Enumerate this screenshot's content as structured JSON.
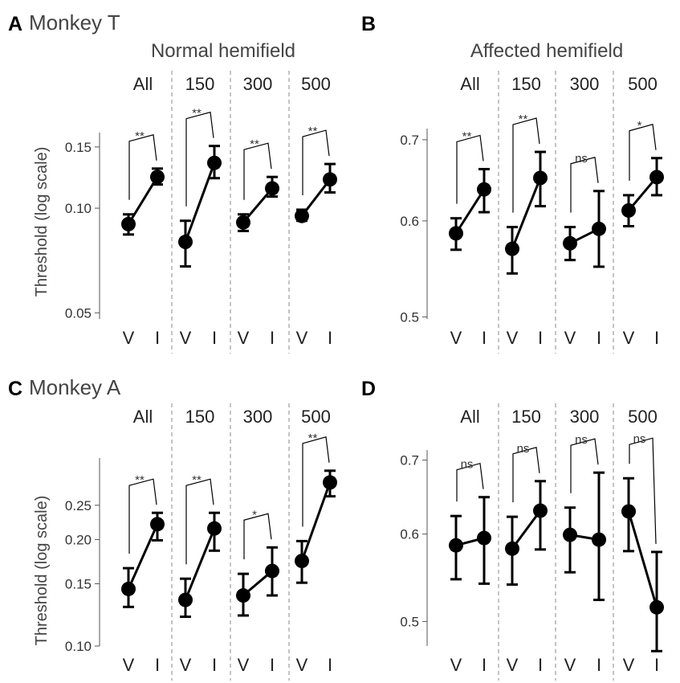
{
  "chart_data": [
    {
      "panel": "A",
      "title": "Monkey T",
      "subtitle": "Normal hemifield",
      "type": "line",
      "yscale": "log",
      "ylabel": "Threshold (log scale)",
      "ylim": [
        0.048,
        0.165
      ],
      "yticks": [
        0.05,
        0.1,
        0.15
      ],
      "ytick_labels": [
        "0.05",
        "0.10",
        "0.15"
      ],
      "conditions": [
        "V",
        "I"
      ],
      "groups": [
        {
          "label": "All",
          "V": {
            "value": 0.09,
            "lo": 0.084,
            "hi": 0.096
          },
          "I": {
            "value": 0.123,
            "lo": 0.117,
            "hi": 0.13
          },
          "sig": "**"
        },
        {
          "label": "150",
          "V": {
            "value": 0.08,
            "lo": 0.068,
            "hi": 0.092
          },
          "I": {
            "value": 0.135,
            "lo": 0.122,
            "hi": 0.151
          },
          "sig": "**"
        },
        {
          "label": "300",
          "V": {
            "value": 0.091,
            "lo": 0.086,
            "hi": 0.096
          },
          "I": {
            "value": 0.114,
            "lo": 0.108,
            "hi": 0.123
          },
          "sig": "**"
        },
        {
          "label": "500",
          "V": {
            "value": 0.095,
            "lo": 0.092,
            "hi": 0.099
          },
          "I": {
            "value": 0.121,
            "lo": 0.111,
            "hi": 0.134
          },
          "sig": "**"
        }
      ]
    },
    {
      "panel": "B",
      "title": "",
      "subtitle": "Affected hemifield",
      "type": "line",
      "yscale": "log",
      "ylabel": "",
      "ylim": [
        0.498,
        0.715
      ],
      "yticks": [
        0.5,
        0.6,
        0.7
      ],
      "ytick_labels": [
        "0.5",
        "0.6",
        "0.7"
      ],
      "conditions": [
        "V",
        "I"
      ],
      "groups": [
        {
          "label": "All",
          "V": {
            "value": 0.586,
            "lo": 0.568,
            "hi": 0.603
          },
          "I": {
            "value": 0.637,
            "lo": 0.61,
            "hi": 0.662
          },
          "sig": "**"
        },
        {
          "label": "150",
          "V": {
            "value": 0.569,
            "lo": 0.543,
            "hi": 0.593
          },
          "I": {
            "value": 0.651,
            "lo": 0.617,
            "hi": 0.684
          },
          "sig": "**"
        },
        {
          "label": "300",
          "V": {
            "value": 0.575,
            "lo": 0.557,
            "hi": 0.593
          },
          "I": {
            "value": 0.591,
            "lo": 0.55,
            "hi": 0.635
          },
          "sig": "ns"
        },
        {
          "label": "500",
          "V": {
            "value": 0.612,
            "lo": 0.594,
            "hi": 0.63
          },
          "I": {
            "value": 0.652,
            "lo": 0.63,
            "hi": 0.676
          },
          "sig": "*"
        }
      ]
    },
    {
      "panel": "C",
      "title": "Monkey A",
      "subtitle": "",
      "type": "line",
      "yscale": "log",
      "ylabel": "Threshold (log scale)",
      "ylim": [
        0.1,
        0.34
      ],
      "yticks": [
        0.1,
        0.15,
        0.2,
        0.25
      ],
      "ytick_labels": [
        "0.10",
        "0.15",
        "0.20",
        "0.25"
      ],
      "conditions": [
        "V",
        "I"
      ],
      "groups": [
        {
          "label": "All",
          "V": {
            "value": 0.145,
            "lo": 0.129,
            "hi": 0.166
          },
          "I": {
            "value": 0.221,
            "lo": 0.199,
            "hi": 0.238
          },
          "sig": "**"
        },
        {
          "label": "150",
          "V": {
            "value": 0.135,
            "lo": 0.121,
            "hi": 0.155
          },
          "I": {
            "value": 0.215,
            "lo": 0.186,
            "hi": 0.238
          },
          "sig": "**"
        },
        {
          "label": "300",
          "V": {
            "value": 0.139,
            "lo": 0.122,
            "hi": 0.16
          },
          "I": {
            "value": 0.163,
            "lo": 0.139,
            "hi": 0.19
          },
          "sig": "*"
        },
        {
          "label": "500",
          "V": {
            "value": 0.174,
            "lo": 0.151,
            "hi": 0.198
          },
          "I": {
            "value": 0.29,
            "lo": 0.265,
            "hi": 0.313
          },
          "sig": "**"
        }
      ]
    },
    {
      "panel": "D",
      "title": "",
      "subtitle": "",
      "type": "line",
      "yscale": "log",
      "ylabel": "",
      "ylim": [
        0.475,
        0.715
      ],
      "yticks": [
        0.5,
        0.6,
        0.7
      ],
      "ytick_labels": [
        "0.5",
        "0.6",
        "0.7"
      ],
      "conditions": [
        "V",
        "I"
      ],
      "groups": [
        {
          "label": "All",
          "V": {
            "value": 0.586,
            "lo": 0.546,
            "hi": 0.623
          },
          "I": {
            "value": 0.595,
            "lo": 0.541,
            "hi": 0.648
          },
          "sig": "ns"
        },
        {
          "label": "150",
          "V": {
            "value": 0.582,
            "lo": 0.54,
            "hi": 0.622
          },
          "I": {
            "value": 0.63,
            "lo": 0.581,
            "hi": 0.67
          },
          "sig": "ns"
        },
        {
          "label": "300",
          "V": {
            "value": 0.599,
            "lo": 0.554,
            "hi": 0.634
          },
          "I": {
            "value": 0.593,
            "lo": 0.523,
            "hi": 0.682
          },
          "sig": "ns"
        },
        {
          "label": "500",
          "V": {
            "value": 0.629,
            "lo": 0.579,
            "hi": 0.674
          },
          "I": {
            "value": 0.515,
            "lo": 0.47,
            "hi": 0.578
          },
          "sig": "ns"
        }
      ]
    }
  ]
}
